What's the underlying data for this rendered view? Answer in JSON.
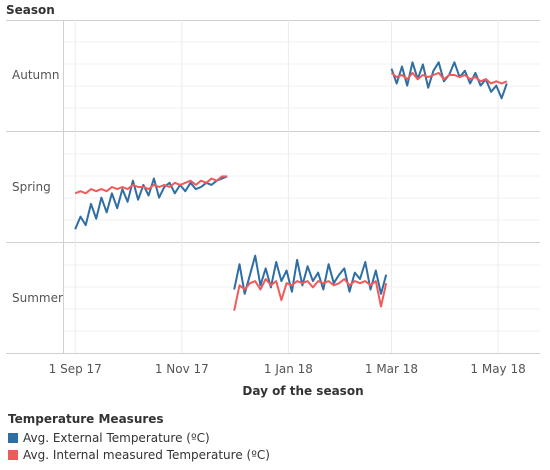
{
  "chart_data": {
    "type": "line",
    "row_header": "Season",
    "xlabel": "Day of the season",
    "x_ticks": [
      "1 Sep 17",
      "1 Nov 17",
      "1 Jan 18",
      "1 Mar 18",
      "1 May 18"
    ],
    "xlim": [
      "2017-08-25",
      "2018-05-25"
    ],
    "grid": true,
    "legend_position": "bottom-left",
    "legend_title": "Temperature Measures",
    "panels": [
      {
        "name": "Autumn",
        "series": [
          {
            "name": "Avg. External Temperature (ºC)",
            "color": "#2f6ea3",
            "x": [
              "2018-03-01",
              "2018-03-04",
              "2018-03-07",
              "2018-03-10",
              "2018-03-13",
              "2018-03-16",
              "2018-03-19",
              "2018-03-22",
              "2018-03-25",
              "2018-03-28",
              "2018-03-31",
              "2018-04-03",
              "2018-04-06",
              "2018-04-09",
              "2018-04-12",
              "2018-04-15",
              "2018-04-18",
              "2018-04-21",
              "2018-04-24",
              "2018-04-27",
              "2018-04-30",
              "2018-05-03",
              "2018-05-06"
            ],
            "y": [
              24.5,
              21.0,
              25.0,
              20.5,
              26.0,
              22.0,
              25.5,
              20.0,
              24.0,
              26.0,
              21.5,
              23.0,
              26.0,
              22.5,
              24.0,
              21.0,
              23.5,
              20.5,
              22.0,
              19.0,
              20.5,
              17.5,
              21.0
            ]
          },
          {
            "name": "Avg. Internal measured Temperature (ºC)",
            "color": "#f05a5a",
            "x": [
              "2018-03-01",
              "2018-03-04",
              "2018-03-07",
              "2018-03-10",
              "2018-03-13",
              "2018-03-16",
              "2018-03-19",
              "2018-03-22",
              "2018-03-25",
              "2018-03-28",
              "2018-03-31",
              "2018-04-03",
              "2018-04-06",
              "2018-04-09",
              "2018-04-12",
              "2018-04-15",
              "2018-04-18",
              "2018-04-21",
              "2018-04-24",
              "2018-04-27",
              "2018-04-30",
              "2018-05-03",
              "2018-05-06"
            ],
            "y": [
              23.5,
              22.5,
              23.0,
              22.0,
              23.5,
              22.0,
              23.0,
              22.5,
              23.0,
              23.5,
              22.0,
              23.0,
              23.0,
              22.5,
              23.0,
              22.0,
              22.5,
              21.5,
              22.0,
              21.0,
              21.5,
              21.0,
              21.5
            ]
          }
        ]
      },
      {
        "name": "Spring",
        "series": [
          {
            "name": "Avg. External Temperature (ºC)",
            "color": "#2f6ea3",
            "x": [
              "2017-09-01",
              "2017-09-04",
              "2017-09-07",
              "2017-09-10",
              "2017-09-13",
              "2017-09-16",
              "2017-09-19",
              "2017-09-22",
              "2017-09-25",
              "2017-09-28",
              "2017-10-01",
              "2017-10-04",
              "2017-10-07",
              "2017-10-10",
              "2017-10-13",
              "2017-10-16",
              "2017-10-19",
              "2017-10-22",
              "2017-10-25",
              "2017-10-28",
              "2017-10-31",
              "2017-11-03",
              "2017-11-06",
              "2017-11-09",
              "2017-11-12",
              "2017-11-15",
              "2017-11-18",
              "2017-11-21",
              "2017-11-24",
              "2017-11-27"
            ],
            "y": [
              13.0,
              16.0,
              14.0,
              19.0,
              15.5,
              20.5,
              17.0,
              21.5,
              18.0,
              22.5,
              19.5,
              24.5,
              20.0,
              23.5,
              21.0,
              25.0,
              20.5,
              23.0,
              24.0,
              21.5,
              23.5,
              22.0,
              24.0,
              22.5,
              23.0,
              24.0,
              23.5,
              24.5,
              25.0,
              25.5
            ]
          },
          {
            "name": "Avg. Internal measured Temperature (ºC)",
            "color": "#f05a5a",
            "x": [
              "2017-09-01",
              "2017-09-04",
              "2017-09-07",
              "2017-09-10",
              "2017-09-13",
              "2017-09-16",
              "2017-09-19",
              "2017-09-22",
              "2017-09-25",
              "2017-09-28",
              "2017-10-01",
              "2017-10-04",
              "2017-10-07",
              "2017-10-10",
              "2017-10-13",
              "2017-10-16",
              "2017-10-19",
              "2017-10-22",
              "2017-10-25",
              "2017-10-28",
              "2017-10-31",
              "2017-11-03",
              "2017-11-06",
              "2017-11-09",
              "2017-11-12",
              "2017-11-15",
              "2017-11-18",
              "2017-11-21",
              "2017-11-24",
              "2017-11-27"
            ],
            "y": [
              21.5,
              22.0,
              21.5,
              22.5,
              22.0,
              22.5,
              22.0,
              23.0,
              22.5,
              23.0,
              22.5,
              23.5,
              23.0,
              23.0,
              22.5,
              23.5,
              23.0,
              23.5,
              23.0,
              24.0,
              23.5,
              24.0,
              24.5,
              23.5,
              24.5,
              24.0,
              25.0,
              24.5,
              25.5,
              25.5
            ]
          }
        ]
      },
      {
        "name": "Summer",
        "series": [
          {
            "name": "Avg. External Temperature (ºC)",
            "color": "#2f6ea3",
            "x": [
              "2017-12-01",
              "2017-12-04",
              "2017-12-07",
              "2017-12-10",
              "2017-12-13",
              "2017-12-16",
              "2017-12-19",
              "2017-12-22",
              "2017-12-25",
              "2017-12-28",
              "2017-12-31",
              "2018-01-03",
              "2018-01-06",
              "2018-01-09",
              "2018-01-12",
              "2018-01-15",
              "2018-01-18",
              "2018-01-21",
              "2018-01-24",
              "2018-01-27",
              "2018-01-30",
              "2018-02-02",
              "2018-02-05",
              "2018-02-08",
              "2018-02-11",
              "2018-02-14",
              "2018-02-17",
              "2018-02-20",
              "2018-02-23",
              "2018-02-26"
            ],
            "y": [
              25.0,
              31.0,
              24.0,
              28.5,
              33.0,
              26.0,
              30.0,
              25.5,
              31.5,
              27.0,
              29.5,
              24.5,
              32.0,
              26.0,
              30.5,
              27.0,
              29.0,
              25.0,
              31.0,
              26.5,
              28.5,
              30.0,
              24.5,
              29.0,
              27.5,
              31.5,
              25.0,
              29.5,
              24.0,
              28.5
            ]
          },
          {
            "name": "Avg. Internal measured Temperature (ºC)",
            "color": "#f05a5a",
            "x": [
              "2017-12-01",
              "2017-12-04",
              "2017-12-07",
              "2017-12-10",
              "2017-12-13",
              "2017-12-16",
              "2017-12-19",
              "2017-12-22",
              "2017-12-25",
              "2017-12-28",
              "2017-12-31",
              "2018-01-03",
              "2018-01-06",
              "2018-01-09",
              "2018-01-12",
              "2018-01-15",
              "2018-01-18",
              "2018-01-21",
              "2018-01-24",
              "2018-01-27",
              "2018-01-30",
              "2018-02-02",
              "2018-02-05",
              "2018-02-08",
              "2018-02-11",
              "2018-02-14",
              "2018-02-17",
              "2018-02-20",
              "2018-02-23",
              "2018-02-26"
            ],
            "y": [
              20.0,
              26.0,
              25.0,
              26.5,
              27.0,
              25.0,
              27.5,
              26.0,
              27.0,
              22.5,
              26.5,
              26.0,
              27.0,
              26.5,
              27.0,
              25.5,
              27.0,
              26.5,
              27.0,
              26.0,
              26.5,
              27.5,
              26.0,
              27.0,
              26.5,
              27.0,
              26.0,
              27.0,
              21.0,
              26.5
            ]
          }
        ]
      }
    ]
  }
}
